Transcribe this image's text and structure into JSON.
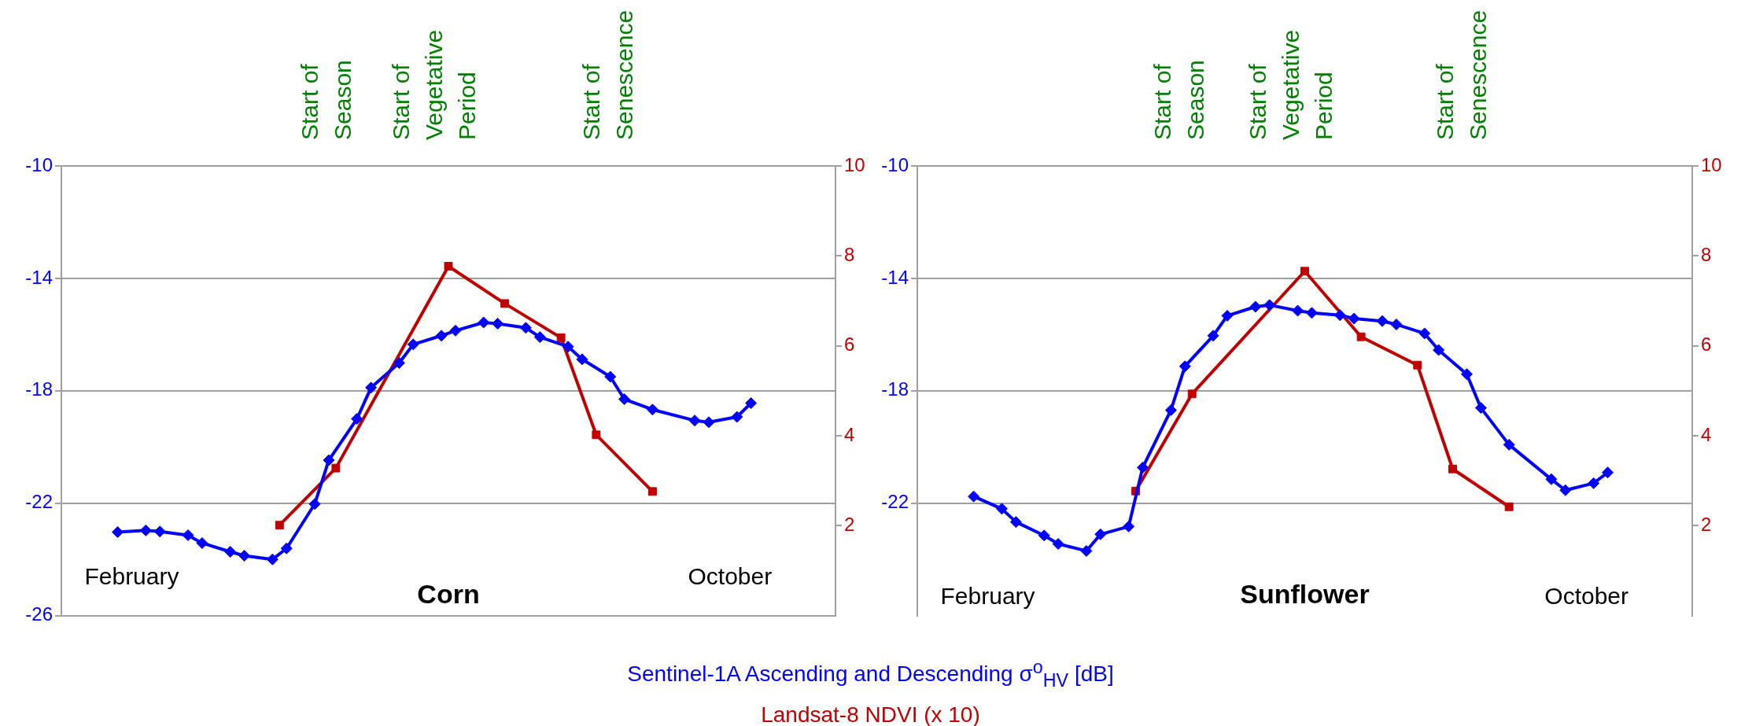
{
  "chart_data": [
    {
      "type": "line",
      "title": "Corn",
      "categories": [
        null,
        null,
        null,
        null,
        null,
        null,
        null,
        null,
        null,
        null,
        "February",
        null,
        null,
        null,
        null,
        null,
        null,
        null,
        null,
        null,
        null,
        null,
        null,
        null,
        null,
        null,
        null,
        null,
        null,
        null,
        null,
        null,
        null,
        null,
        null,
        null,
        null,
        null,
        null,
        null,
        null,
        null,
        null,
        null,
        null,
        null,
        null,
        null,
        null,
        null,
        null,
        null,
        null,
        null,
        null,
        null,
        null,
        null,
        null,
        null,
        null,
        null,
        null,
        null,
        null,
        null,
        null,
        null,
        null,
        null,
        null,
        null,
        null,
        null,
        null,
        null,
        null,
        null,
        null,
        null,
        null,
        null,
        null,
        null,
        null,
        null,
        null,
        null,
        null,
        null,
        null,
        null,
        null,
        null,
        null,
        "October",
        null,
        null,
        null,
        null,
        null,
        null,
        null,
        null,
        null,
        null,
        null,
        null,
        null,
        null,
        null
      ],
      "ylim": [
        -26,
        -10
      ],
      "yticks": [
        -26,
        -22,
        -18,
        -14,
        -10
      ],
      "y2lim": [
        0,
        10
      ],
      "y2ticks": [
        2,
        4,
        6,
        8,
        10
      ],
      "grid": "y",
      "annotations": [
        "Start of Season",
        "Start of Vegetative Period",
        "Start of Senescence"
      ],
      "series": [
        {
          "name": "Sentinel-1A Ascending and Descending σ$^{o}$$_{HV}$ [dB]",
          "color": "#0000ff",
          "marker": "diamond",
          "values": [
            null,
            null,
            null,
            null,
            null,
            null,
            null,
            null,
            -23.03,
            null,
            null,
            null,
            -22.97,
            null,
            -23.01,
            null,
            null,
            null,
            -23.14,
            null,
            -23.42,
            null,
            null,
            null,
            -23.73,
            null,
            -23.87,
            null,
            null,
            null,
            -24,
            null,
            -23.61,
            null,
            null,
            null,
            -22.03,
            null,
            -20.47,
            null,
            null,
            null,
            -19,
            null,
            -17.89,
            null,
            null,
            null,
            -17.01,
            null,
            -16.35,
            null,
            null,
            null,
            -16.04,
            null,
            -15.86,
            null,
            null,
            null,
            -15.57,
            null,
            -15.61,
            null,
            null,
            null,
            -15.76,
            null,
            -16.09,
            null,
            null,
            null,
            -16.43,
            null,
            -16.88,
            null,
            null,
            null,
            -17.5,
            null,
            -18.3,
            null,
            null,
            null,
            -18.67,
            null,
            null,
            null,
            null,
            null,
            -19.06,
            null,
            -19.12,
            null,
            null,
            null,
            -18.93,
            null,
            -18.44,
            null,
            null,
            null,
            null,
            null,
            null,
            null,
            null,
            null,
            null,
            null,
            null
          ]
        },
        {
          "name": "Landsat-8 NDVI (x 10)",
          "color": "#c00000",
          "marker": "square",
          "axis": "y2",
          "values": [
            null,
            null,
            null,
            null,
            null,
            null,
            null,
            null,
            null,
            null,
            null,
            null,
            null,
            null,
            null,
            null,
            null,
            null,
            null,
            null,
            null,
            null,
            null,
            null,
            null,
            null,
            null,
            null,
            null,
            null,
            null,
            2.01,
            null,
            null,
            null,
            null,
            null,
            null,
            null,
            3.28,
            null,
            null,
            null,
            null,
            null,
            null,
            null,
            null,
            null,
            null,
            null,
            null,
            null,
            null,
            null,
            7.77,
            null,
            null,
            null,
            null,
            null,
            null,
            null,
            6.94,
            null,
            null,
            null,
            null,
            null,
            null,
            null,
            6.18,
            null,
            null,
            null,
            null,
            4.02,
            null,
            null,
            null,
            null,
            null,
            null,
            null,
            2.76,
            null,
            null,
            null,
            null,
            null,
            null,
            null,
            null,
            null,
            null,
            null,
            null,
            null,
            null,
            null,
            null,
            null,
            null,
            null,
            null,
            null,
            null,
            null,
            null,
            null,
            null
          ]
        }
      ]
    },
    {
      "type": "line",
      "title": "Sunflower",
      "categories": [
        null,
        null,
        null,
        null,
        null,
        null,
        null,
        null,
        null,
        null,
        "February",
        null,
        null,
        null,
        null,
        null,
        null,
        null,
        null,
        null,
        null,
        null,
        null,
        null,
        null,
        null,
        null,
        null,
        null,
        null,
        null,
        null,
        null,
        null,
        null,
        null,
        null,
        null,
        null,
        null,
        null,
        null,
        null,
        null,
        null,
        null,
        null,
        null,
        null,
        null,
        null,
        null,
        null,
        null,
        null,
        null,
        null,
        null,
        null,
        null,
        null,
        null,
        null,
        null,
        null,
        null,
        null,
        null,
        null,
        null,
        null,
        null,
        null,
        null,
        null,
        null,
        null,
        null,
        null,
        null,
        null,
        null,
        null,
        null,
        null,
        null,
        null,
        null,
        null,
        null,
        null,
        null,
        null,
        null,
        null,
        "October",
        null,
        null,
        null,
        null,
        null,
        null,
        null,
        null,
        null,
        null,
        null,
        null,
        null,
        null,
        null
      ],
      "ylim": [
        -26,
        -10
      ],
      "yticks": [
        -22,
        -18,
        -14,
        -10
      ],
      "y2lim": [
        0,
        10
      ],
      "y2ticks": [
        2,
        4,
        6,
        8,
        10
      ],
      "grid": "y",
      "annotations": [
        "Start of Season",
        "Start of Vegetative Period",
        "Start of Senescence"
      ],
      "series": [
        {
          "color": "#0000ff",
          "marker": "diamond",
          "values": [
            null,
            null,
            null,
            null,
            null,
            null,
            null,
            null,
            -21.76,
            null,
            null,
            null,
            -22.2,
            null,
            -22.67,
            null,
            null,
            null,
            -23.15,
            null,
            -23.45,
            null,
            null,
            null,
            -23.7,
            null,
            -23.11,
            null,
            null,
            null,
            -22.83,
            null,
            -20.73,
            null,
            null,
            null,
            -18.69,
            null,
            -17.13,
            null,
            null,
            null,
            -16.04,
            null,
            -15.33,
            null,
            null,
            null,
            -15.01,
            null,
            -14.95,
            null,
            null,
            null,
            -15.15,
            null,
            -15.23,
            null,
            null,
            null,
            -15.31,
            null,
            -15.43,
            null,
            null,
            null,
            -15.52,
            null,
            -15.64,
            null,
            null,
            null,
            -15.96,
            null,
            -16.55,
            null,
            null,
            null,
            -17.41,
            null,
            -18.61,
            null,
            null,
            null,
            -19.92,
            null,
            null,
            null,
            null,
            null,
            -21.15,
            null,
            -21.54,
            null,
            null,
            null,
            -21.29,
            null,
            -20.91,
            null,
            null,
            null,
            null,
            null,
            null,
            null,
            null,
            null,
            null,
            null,
            null
          ]
        },
        {
          "color": "#c00000",
          "marker": "square",
          "axis": "y2",
          "values": [
            null,
            null,
            null,
            null,
            null,
            null,
            null,
            null,
            null,
            null,
            null,
            null,
            null,
            null,
            null,
            null,
            null,
            null,
            null,
            null,
            null,
            null,
            null,
            null,
            null,
            null,
            null,
            null,
            null,
            null,
            null,
            2.77,
            null,
            null,
            null,
            null,
            null,
            null,
            null,
            4.93,
            null,
            null,
            null,
            null,
            null,
            null,
            null,
            null,
            null,
            null,
            null,
            null,
            null,
            null,
            null,
            7.66,
            null,
            null,
            null,
            null,
            null,
            null,
            null,
            6.2,
            null,
            null,
            null,
            null,
            null,
            null,
            null,
            5.57,
            null,
            null,
            null,
            null,
            3.26,
            null,
            null,
            null,
            null,
            null,
            null,
            null,
            2.42,
            null,
            null,
            null,
            null,
            null,
            null,
            null,
            null,
            null,
            null,
            null,
            null,
            null,
            null,
            null,
            null,
            null,
            null,
            null,
            null,
            null,
            null,
            null,
            null,
            null,
            null
          ]
        }
      ]
    }
  ]
}
